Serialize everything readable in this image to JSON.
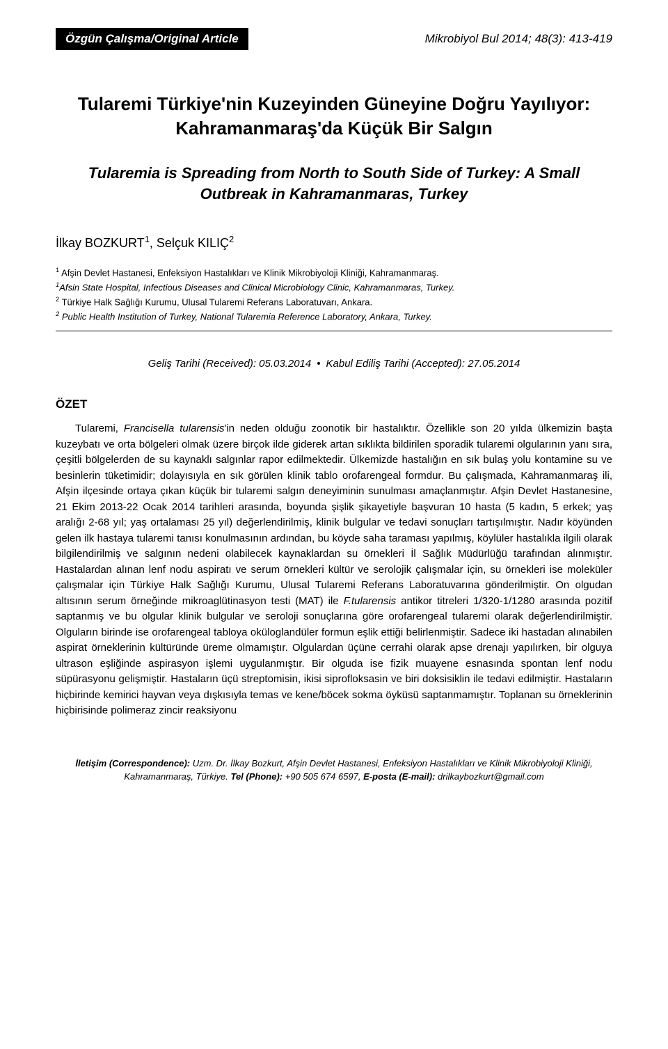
{
  "header": {
    "article_type": "Özgün Çalışma/Original Article",
    "journal_ref": "Mikrobiyol Bul 2014; 48(3): 413-419"
  },
  "title": {
    "main": "Tularemi Türkiye'nin Kuzeyinden Güneyine Doğru Yayılıyor: Kahramanmaraş'da Küçük Bir Salgın",
    "subtitle": "Tularemia is Spreading from North to South Side of Turkey: A Small Outbreak in Kahramanmaras, Turkey"
  },
  "authors": {
    "a1_name": "İlkay BOZKURT",
    "a1_sup": "1",
    "a2_name": "Selçuk KILIÇ",
    "a2_sup": "2"
  },
  "affiliations": {
    "l1_sup": "1",
    "l1_text": " Afşin Devlet Hastanesi, Enfeksiyon Hastalıkları ve Klinik Mikrobiyoloji Kliniği, Kahramanmaraş.",
    "l2_sup": "1",
    "l2_text": "Afsin State Hospital, Infectious Diseases and Clinical Microbiology Clinic, Kahramanmaras, Turkey.",
    "l3_sup": "2",
    "l3_text": " Türkiye Halk Sağlığı Kurumu, Ulusal Tularemi Referans Laboratuvarı, Ankara.",
    "l4_sup": "2",
    "l4_text": " Public Health Institution of Turkey, National Tularemia Reference Laboratory, Ankara, Turkey."
  },
  "dates": {
    "received_label": "Geliş Tarihi (Received): ",
    "received_value": "05.03.2014",
    "accepted_label": "Kabul Ediliş Tarihi (Accepted): ",
    "accepted_value": "27.05.2014"
  },
  "abstract": {
    "heading": "ÖZET",
    "lead": "Tularemi, ",
    "sci": "Francisella tularensis",
    "body": "'in neden olduğu zoonotik bir hastalıktır. Özellikle son 20 yılda ülkemizin başta kuzeybatı ve orta bölgeleri olmak üzere birçok ilde giderek artan sıklıkta bildirilen sporadik tularemi olgularının yanı sıra, çeşitli bölgelerden de su kaynaklı salgınlar rapor edilmektedir. Ülkemizde hastalığın en sık bulaş yolu kontamine su ve besinlerin tüketimidir; dolayısıyla en sık görülen klinik tablo orofarengeal formdur. Bu çalışmada, Kahramanmaraş ili, Afşin ilçesinde ortaya çıkan küçük bir tularemi salgın deneyiminin sunulması amaçlanmıştır. Afşin Devlet Hastanesine, 21 Ekim 2013-22 Ocak 2014 tarihleri arasında, boyunda şişlik şikayetiyle başvuran 10 hasta (5 kadın, 5 erkek; yaş aralığı 2-68 yıl; yaş ortalaması 25 yıl) değerlendirilmiş, klinik bulgular ve tedavi sonuçları tartışılmıştır. Nadır köyünden gelen ilk hastaya tularemi tanısı konulmasının ardından, bu köyde saha taraması yapılmış, köylüler hastalıkla ilgili olarak bilgilendirilmiş ve salgının nedeni olabilecek kaynaklardan su örnekleri İl Sağlık Müdürlüğü tarafından alınmıştır. Hastalardan alınan lenf nodu aspiratı ve serum örnekleri kültür ve serolojik çalışmalar için, su örnekleri ise moleküler çalışmalar için Türkiye Halk Sağlığı Kurumu, Ulusal Tularemi Referans Laboratuvarına gönderilmiştir. On olgudan altısının serum örneğinde mikroaglütinasyon testi (MAT) ile ",
    "sci2": "F.tularensis",
    "body2": " antikor titreleri 1/320-1/1280 arasında pozitif saptanmış ve bu olgular klinik bulgular ve seroloji sonuçlarına göre orofarengeal tularemi olarak değerlendirilmiştir. Olguların birinde ise orofarengeal tabloya oküloglandüler formun eşlik ettiği belirlenmiştir. Sadece iki hastadan alınabilen aspirat örneklerinin kültüründe üreme olmamıştır. Olgulardan üçüne cerrahi olarak apse drenajı yapılırken, bir olguya ultrason eşliğinde aspirasyon işlemi uygulanmıştır. Bir olguda ise fizik muayene esnasında spontan lenf nodu süpürasyonu gelişmiştir. Hastaların üçü streptomisin, ikisi siprofloksasin ve biri doksisiklin ile tedavi edilmiştir. Hastaların hiçbirinde kemirici hayvan veya dışkısıyla temas ve kene/böcek sokma öyküsü saptanmamıştır. Toplanan su örneklerinin hiçbirisinde polimeraz zincir reaksiyonu"
  },
  "correspondence": {
    "label": "İletişim (Correspondence):",
    "text1": " Uzm. Dr. İlkay Bozkurt, Afşin Devlet Hastanesi, Enfeksiyon Hastalıkları ve Klinik Mikrobiyoloji Kliniği, Kahramanmaraş, Türkiye. ",
    "tel_label": "Tel (Phone):",
    "tel_value": " +90 505 674 6597, ",
    "email_label": "E-posta (E-mail):",
    "email_value": " drilkaybozkurt@gmail.com"
  }
}
